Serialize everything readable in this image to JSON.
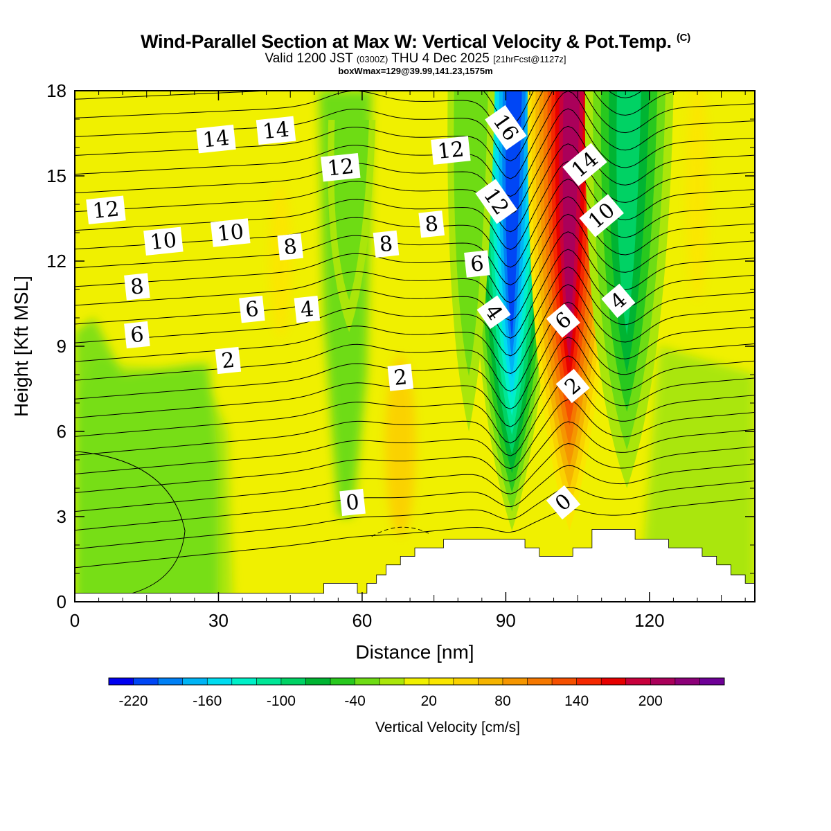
{
  "header": {
    "title": "Wind-Parallel Section at Max W: Vertical Velocity & Pot.Temp.",
    "copyright": "(C)",
    "valid_prefix": "Valid 1200 JST",
    "valid_utc": "(0300Z)",
    "valid_date": "THU 4 Dec 2025",
    "forecast_info": "[21hrFcst@1127z]",
    "box_info": "boxWmax=129@39.99,141.23,1575m"
  },
  "chart_data": {
    "type": "heatmap",
    "title": "Wind-Parallel Section at Max W: Vertical Velocity & Pot.Temp.",
    "xlabel": "Distance [nm]",
    "ylabel": "Height [Kft MSL]",
    "xlim": [
      0,
      142
    ],
    "ylim": [
      0,
      18
    ],
    "x_ticks": [
      0,
      30,
      60,
      90,
      120
    ],
    "y_ticks": [
      0,
      3,
      6,
      9,
      12,
      15,
      18
    ],
    "colorbar": {
      "title": "Vertical Velocity [cm/s]",
      "levels": [
        -240,
        -220,
        -200,
        -180,
        -160,
        -140,
        -120,
        -100,
        -80,
        -60,
        -40,
        -20,
        0,
        20,
        40,
        60,
        80,
        100,
        120,
        140,
        160,
        180,
        200,
        220,
        240
      ],
      "tick_labels": [
        "-220",
        "-160",
        "-100",
        "-40",
        "20",
        "80",
        "140",
        "200"
      ],
      "tick_values": [
        -220,
        -160,
        -100,
        -40,
        20,
        80,
        140,
        200
      ],
      "colors": [
        "#0000f0",
        "#0046f5",
        "#0080f5",
        "#00b4f5",
        "#00dcf0",
        "#00f0c8",
        "#00e696",
        "#00d264",
        "#00b432",
        "#28c81e",
        "#6edc14",
        "#aae60a",
        "#f0f000",
        "#fae600",
        "#fad200",
        "#f5b400",
        "#f59600",
        "#f57800",
        "#f55000",
        "#f52800",
        "#e60000",
        "#c8003c",
        "#aa005a",
        "#8c0078",
        "#6e0096"
      ]
    },
    "velocity_features": [
      {
        "name": "downdraft",
        "x": 91,
        "y_top": 18,
        "y_bottom": 2.5,
        "peak": -210
      },
      {
        "name": "updraft",
        "x": 103,
        "y_top": 18,
        "y_bottom": 2.5,
        "peak": 200
      },
      {
        "name": "downdraft-east",
        "x": 115,
        "y_top": 18,
        "y_bottom": 4,
        "peak": -100
      },
      {
        "name": "downdraft-weak",
        "x": 57,
        "y_top": 16,
        "y_bottom": 9.5,
        "peak": -40
      },
      {
        "name": "downdraft-weak-2",
        "x": 82,
        "y_top": 18,
        "y_bottom": 6,
        "peak": -40
      }
    ],
    "theta_contour_labels": [
      {
        "text": "14",
        "x": 29.5,
        "y": 16.3
      },
      {
        "text": "14",
        "x": 42,
        "y": 16.6
      },
      {
        "text": "12",
        "x": 55.5,
        "y": 15.3
      },
      {
        "text": "12",
        "x": 78.5,
        "y": 15.9
      },
      {
        "text": "16",
        "x": 90,
        "y": 16.7
      },
      {
        "text": "14",
        "x": 106.5,
        "y": 15.4
      },
      {
        "text": "12",
        "x": 88,
        "y": 14.1
      },
      {
        "text": "12",
        "x": 6.5,
        "y": 13.8
      },
      {
        "text": "10",
        "x": 18.5,
        "y": 12.7
      },
      {
        "text": "10",
        "x": 32.5,
        "y": 13
      },
      {
        "text": "10",
        "x": 110,
        "y": 13.6
      },
      {
        "text": "8",
        "x": 45,
        "y": 12.5
      },
      {
        "text": "8",
        "x": 65,
        "y": 12.6
      },
      {
        "text": "8",
        "x": 74.5,
        "y": 13.3
      },
      {
        "text": "6",
        "x": 84,
        "y": 11.9
      },
      {
        "text": "8",
        "x": 13,
        "y": 11.1
      },
      {
        "text": "6",
        "x": 37,
        "y": 10.3
      },
      {
        "text": "4",
        "x": 48.5,
        "y": 10.3
      },
      {
        "text": "4",
        "x": 87.5,
        "y": 10.2
      },
      {
        "text": "4",
        "x": 113.5,
        "y": 10.6
      },
      {
        "text": "6",
        "x": 102,
        "y": 9.9
      },
      {
        "text": "6",
        "x": 13,
        "y": 9.4
      },
      {
        "text": "2",
        "x": 32,
        "y": 8.5
      },
      {
        "text": "2",
        "x": 68,
        "y": 7.9
      },
      {
        "text": "2",
        "x": 104,
        "y": 7.6
      },
      {
        "text": "0",
        "x": 58,
        "y": 3.5
      },
      {
        "text": "0",
        "x": 102,
        "y": 3.5
      }
    ],
    "terrain_profile": [
      {
        "x": 0,
        "y": 0.3
      },
      {
        "x": 51,
        "y": 0.3
      },
      {
        "x": 52,
        "y": 0.65
      },
      {
        "x": 58,
        "y": 0.65
      },
      {
        "x": 59,
        "y": 0.3
      },
      {
        "x": 61,
        "y": 0.65
      },
      {
        "x": 63,
        "y": 0.95
      },
      {
        "x": 65,
        "y": 1.3
      },
      {
        "x": 68,
        "y": 1.6
      },
      {
        "x": 71,
        "y": 1.9
      },
      {
        "x": 74,
        "y": 1.9
      },
      {
        "x": 77,
        "y": 2.2
      },
      {
        "x": 87,
        "y": 2.2
      },
      {
        "x": 94,
        "y": 1.9
      },
      {
        "x": 97,
        "y": 1.6
      },
      {
        "x": 104,
        "y": 1.9
      },
      {
        "x": 108,
        "y": 2.55
      },
      {
        "x": 112,
        "y": 2.55
      },
      {
        "x": 117,
        "y": 2.2
      },
      {
        "x": 124,
        "y": 1.9
      },
      {
        "x": 131,
        "y": 1.6
      },
      {
        "x": 134,
        "y": 1.3
      },
      {
        "x": 137,
        "y": 0.95
      },
      {
        "x": 140,
        "y": 0.65
      },
      {
        "x": 142,
        "y": 0.65
      }
    ]
  }
}
